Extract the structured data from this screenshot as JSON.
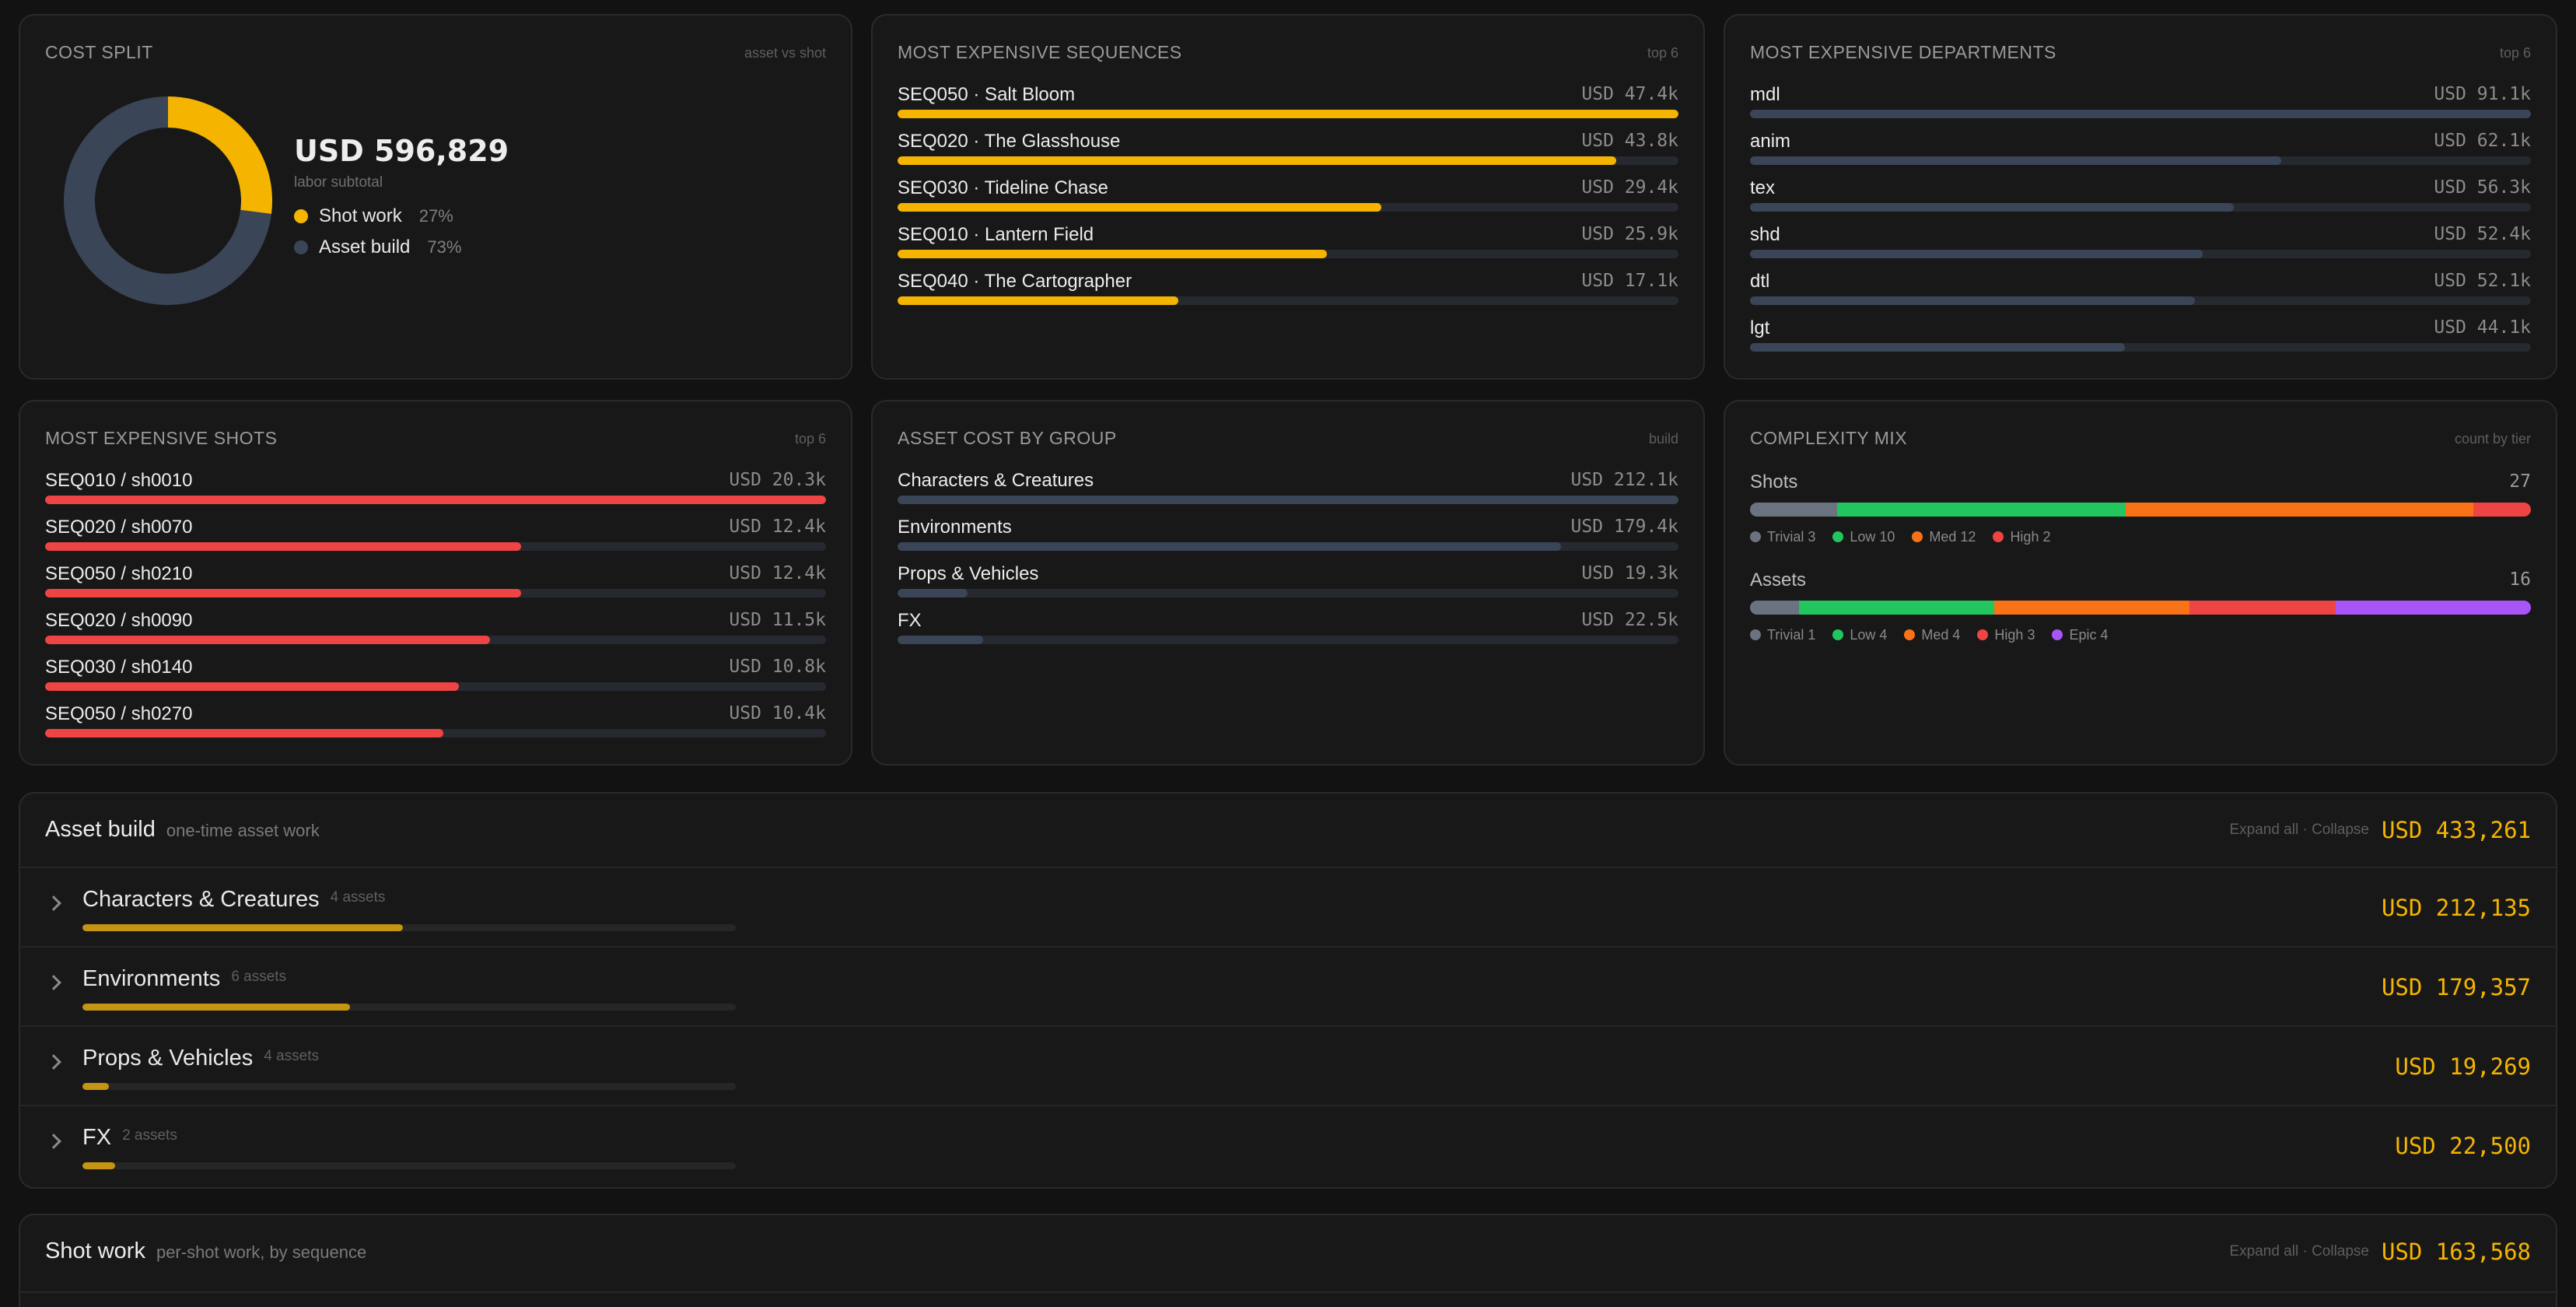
{
  "cost_split": {
    "title": "COST SPLIT",
    "meta": "asset vs shot",
    "total": "USD 596,829",
    "total_sub": "labor subtotal",
    "legend": [
      {
        "label": "Shot work",
        "pct": "27%",
        "color": "#f4b400",
        "fraction": 0.27
      },
      {
        "label": "Asset build",
        "pct": "73%",
        "color": "#3a4558",
        "fraction": 0.73
      }
    ]
  },
  "sequences": {
    "title": "MOST EXPENSIVE SEQUENCES",
    "meta": "top 6",
    "color": "#f4b400",
    "rows": [
      {
        "label": "SEQ050 · Salt Bloom",
        "value": "USD 47.4k",
        "fraction": 1.0
      },
      {
        "label": "SEQ020 · The Glasshouse",
        "value": "USD 43.8k",
        "fraction": 0.92
      },
      {
        "label": "SEQ030 · Tideline Chase",
        "value": "USD 29.4k",
        "fraction": 0.62
      },
      {
        "label": "SEQ010 · Lantern Field",
        "value": "USD 25.9k",
        "fraction": 0.55
      },
      {
        "label": "SEQ040 · The Cartographer",
        "value": "USD 17.1k",
        "fraction": 0.36
      }
    ]
  },
  "departments": {
    "title": "MOST EXPENSIVE DEPARTMENTS",
    "meta": "top 6",
    "color": "#3a4558",
    "rows": [
      {
        "label": "mdl",
        "value": "USD 91.1k",
        "fraction": 1.0
      },
      {
        "label": "anim",
        "value": "USD 62.1k",
        "fraction": 0.68
      },
      {
        "label": "tex",
        "value": "USD 56.3k",
        "fraction": 0.62
      },
      {
        "label": "shd",
        "value": "USD 52.4k",
        "fraction": 0.58
      },
      {
        "label": "dtl",
        "value": "USD 52.1k",
        "fraction": 0.57
      },
      {
        "label": "lgt",
        "value": "USD 44.1k",
        "fraction": 0.48
      }
    ]
  },
  "shots": {
    "title": "MOST EXPENSIVE SHOTS",
    "meta": "top 6",
    "color": "#ef4444",
    "rows": [
      {
        "label": "SEQ010 / sh0010",
        "value": "USD 20.3k",
        "fraction": 1.0
      },
      {
        "label": "SEQ020 / sh0070",
        "value": "USD 12.4k",
        "fraction": 0.61
      },
      {
        "label": "SEQ050 / sh0210",
        "value": "USD 12.4k",
        "fraction": 0.61
      },
      {
        "label": "SEQ020 / sh0090",
        "value": "USD 11.5k",
        "fraction": 0.57
      },
      {
        "label": "SEQ030 / sh0140",
        "value": "USD 10.8k",
        "fraction": 0.53
      },
      {
        "label": "SEQ050 / sh0270",
        "value": "USD 10.4k",
        "fraction": 0.51
      }
    ]
  },
  "asset_groups": {
    "title": "ASSET COST BY GROUP",
    "meta": "build",
    "color": "#3a4558",
    "rows": [
      {
        "label": "Characters & Creatures",
        "value": "USD 212.1k",
        "fraction": 1.0
      },
      {
        "label": "Environments",
        "value": "USD 179.4k",
        "fraction": 0.85
      },
      {
        "label": "Props & Vehicles",
        "value": "USD 19.3k",
        "fraction": 0.09
      },
      {
        "label": "FX",
        "value": "USD 22.5k",
        "fraction": 0.11
      }
    ]
  },
  "complexity": {
    "title": "COMPLEXITY MIX",
    "meta": "count by tier",
    "shots": {
      "label": "Shots",
      "count": "27",
      "tiers": [
        {
          "label": "Trivial 3",
          "value": 3,
          "color": "#6b7280"
        },
        {
          "label": "Low 10",
          "value": 10,
          "color": "#22c55e"
        },
        {
          "label": "Med 12",
          "value": 12,
          "color": "#f97316"
        },
        {
          "label": "High 2",
          "value": 2,
          "color": "#ef4444"
        }
      ]
    },
    "assets": {
      "label": "Assets",
      "count": "16",
      "tiers": [
        {
          "label": "Trivial 1",
          "value": 1,
          "color": "#6b7280"
        },
        {
          "label": "Low 4",
          "value": 4,
          "color": "#22c55e"
        },
        {
          "label": "Med 4",
          "value": 4,
          "color": "#f97316"
        },
        {
          "label": "High 3",
          "value": 3,
          "color": "#ef4444"
        },
        {
          "label": "Epic 4",
          "value": 4,
          "color": "#a855f7"
        }
      ]
    }
  },
  "asset_build": {
    "title": "Asset build",
    "subtitle": "one-time asset work",
    "actions": "Expand all · Collapse",
    "total": "USD 433,261",
    "groups": [
      {
        "name": "Characters & Creatures",
        "count": "4 assets",
        "total": "USD 212,135",
        "fraction": 0.49
      },
      {
        "name": "Environments",
        "count": "6 assets",
        "total": "USD 179,357",
        "fraction": 0.41
      },
      {
        "name": "Props & Vehicles",
        "count": "4 assets",
        "total": "USD 19,269",
        "fraction": 0.04
      },
      {
        "name": "FX",
        "count": "2 assets",
        "total": "USD 22,500",
        "fraction": 0.05
      }
    ]
  },
  "shot_work": {
    "title": "Shot work",
    "subtitle": "per-shot work, by sequence",
    "actions": "Expand all · Collapse",
    "total": "USD 163,568"
  }
}
